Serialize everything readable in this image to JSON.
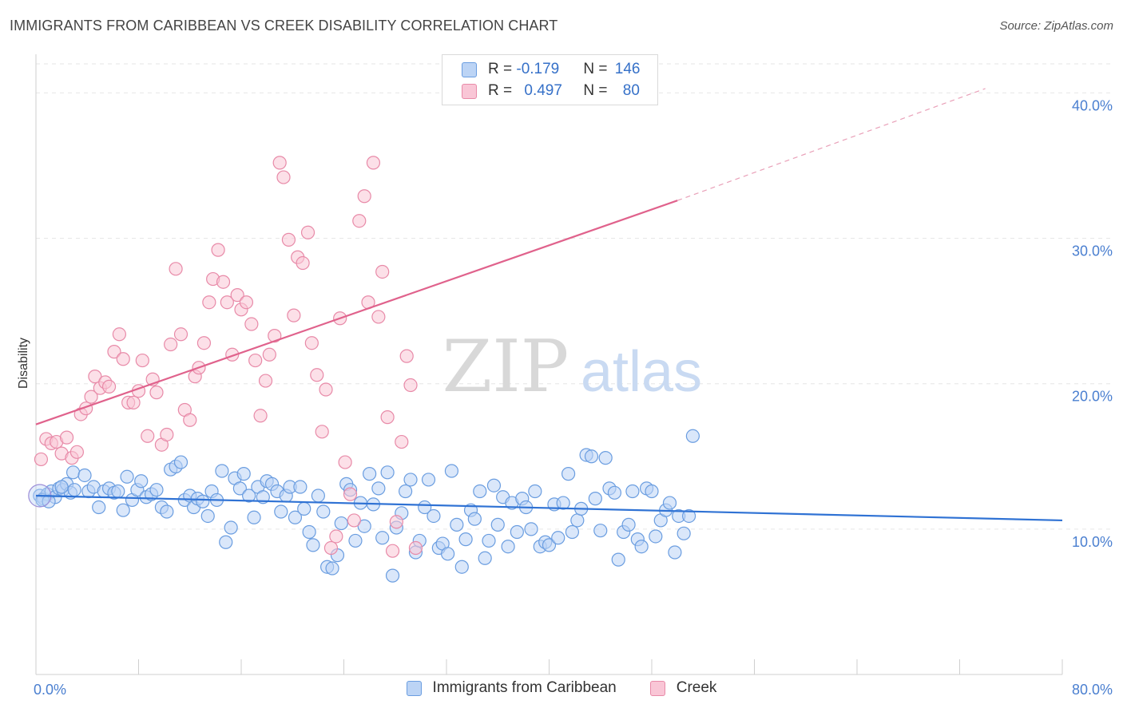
{
  "header": {
    "title": "IMMIGRANTS FROM CARIBBEAN VS CREEK DISABILITY CORRELATION CHART",
    "source": "Source: ZipAtlas.com"
  },
  "watermark": {
    "zip": "ZIP",
    "atlas": "atlas"
  },
  "legend": {
    "rows": [
      {
        "r_label": "R = ",
        "r_value": "-0.179",
        "n_label": "N = ",
        "n_value": "146"
      },
      {
        "r_label": "R = ",
        "r_value": "0.497",
        "n_label": "N = ",
        "n_value": "80"
      }
    ]
  },
  "chart_data": {
    "type": "scatter",
    "title": "IMMIGRANTS FROM CARIBBEAN VS CREEK DISABILITY CORRELATION CHART",
    "xlabel": "",
    "ylabel": "Disability",
    "xlim": [
      0,
      80
    ],
    "ylim": [
      0,
      42
    ],
    "x_tick_labels": [
      "0.0%",
      "80.0%"
    ],
    "y_ticks": [
      10,
      20,
      30,
      40
    ],
    "y_tick_labels": [
      "10.0%",
      "20.0%",
      "30.0%",
      "40.0%"
    ],
    "grid": true,
    "legend_position": "top-center",
    "series": [
      {
        "name": "Immigrants from Caribbean",
        "color": "#6a9de0",
        "fill": "#bcd4f5",
        "r": -0.179,
        "n": 146,
        "trend": {
          "x": [
            0,
            80
          ],
          "y": [
            12.3,
            10.6
          ]
        },
        "points": [
          [
            0.3,
            12.3
          ],
          [
            0.6,
            12.1
          ],
          [
            0.9,
            12.4
          ],
          [
            1.2,
            12.6
          ],
          [
            1.5,
            12.2
          ],
          [
            1.8,
            12.8
          ],
          [
            2.1,
            12.7
          ],
          [
            2.4,
            13.1
          ],
          [
            2.7,
            12.5
          ],
          [
            3.0,
            12.7
          ],
          [
            0.5,
            12.0
          ],
          [
            1.0,
            11.9
          ],
          [
            2.0,
            12.9
          ],
          [
            2.9,
            13.9
          ],
          [
            3.8,
            13.7
          ],
          [
            4.1,
            12.6
          ],
          [
            4.5,
            12.9
          ],
          [
            4.9,
            11.5
          ],
          [
            5.3,
            12.6
          ],
          [
            5.7,
            12.8
          ],
          [
            6.1,
            12.5
          ],
          [
            6.4,
            12.6
          ],
          [
            6.8,
            11.3
          ],
          [
            7.1,
            13.6
          ],
          [
            7.5,
            12.0
          ],
          [
            7.9,
            12.7
          ],
          [
            8.2,
            13.3
          ],
          [
            8.6,
            12.2
          ],
          [
            9.0,
            12.4
          ],
          [
            9.4,
            12.7
          ],
          [
            9.8,
            11.5
          ],
          [
            10.2,
            11.2
          ],
          [
            10.5,
            14.1
          ],
          [
            10.9,
            14.3
          ],
          [
            11.3,
            14.6
          ],
          [
            11.6,
            12.0
          ],
          [
            12.0,
            12.3
          ],
          [
            12.3,
            11.5
          ],
          [
            12.6,
            12.1
          ],
          [
            13.0,
            11.9
          ],
          [
            13.4,
            10.9
          ],
          [
            13.7,
            12.6
          ],
          [
            14.1,
            12.0
          ],
          [
            14.5,
            14.0
          ],
          [
            14.8,
            9.1
          ],
          [
            15.2,
            10.1
          ],
          [
            15.5,
            13.5
          ],
          [
            15.9,
            12.8
          ],
          [
            16.2,
            13.8
          ],
          [
            16.6,
            12.3
          ],
          [
            17.0,
            10.8
          ],
          [
            17.3,
            12.9
          ],
          [
            17.7,
            12.2
          ],
          [
            18.0,
            13.3
          ],
          [
            18.4,
            13.1
          ],
          [
            18.8,
            12.6
          ],
          [
            19.1,
            11.2
          ],
          [
            19.5,
            12.3
          ],
          [
            19.8,
            12.9
          ],
          [
            20.2,
            10.8
          ],
          [
            20.6,
            12.9
          ],
          [
            20.9,
            11.4
          ],
          [
            21.3,
            9.8
          ],
          [
            21.6,
            8.9
          ],
          [
            22.0,
            12.3
          ],
          [
            22.4,
            11.2
          ],
          [
            22.7,
            7.4
          ],
          [
            23.1,
            7.3
          ],
          [
            23.5,
            8.2
          ],
          [
            23.8,
            10.4
          ],
          [
            24.2,
            13.1
          ],
          [
            24.5,
            12.7
          ],
          [
            24.9,
            9.2
          ],
          [
            25.3,
            11.8
          ],
          [
            25.6,
            10.2
          ],
          [
            26.0,
            13.8
          ],
          [
            26.3,
            11.7
          ],
          [
            26.7,
            12.8
          ],
          [
            27.0,
            9.4
          ],
          [
            27.4,
            13.9
          ],
          [
            27.8,
            6.8
          ],
          [
            28.1,
            10.1
          ],
          [
            28.5,
            11.1
          ],
          [
            28.8,
            12.6
          ],
          [
            29.2,
            13.4
          ],
          [
            29.6,
            8.4
          ],
          [
            29.9,
            9.2
          ],
          [
            30.3,
            11.5
          ],
          [
            30.6,
            13.4
          ],
          [
            31.0,
            10.9
          ],
          [
            31.4,
            8.7
          ],
          [
            31.7,
            9.0
          ],
          [
            32.1,
            8.3
          ],
          [
            32.4,
            14.0
          ],
          [
            32.8,
            10.3
          ],
          [
            33.2,
            7.4
          ],
          [
            33.5,
            9.3
          ],
          [
            33.9,
            11.3
          ],
          [
            34.2,
            10.7
          ],
          [
            34.6,
            12.6
          ],
          [
            35.0,
            8.0
          ],
          [
            35.3,
            9.2
          ],
          [
            35.7,
            13.0
          ],
          [
            36.0,
            10.3
          ],
          [
            36.4,
            12.2
          ],
          [
            36.8,
            8.8
          ],
          [
            37.1,
            11.8
          ],
          [
            37.5,
            9.8
          ],
          [
            37.9,
            12.1
          ],
          [
            38.2,
            11.5
          ],
          [
            38.6,
            10.0
          ],
          [
            38.9,
            12.6
          ],
          [
            39.3,
            8.8
          ],
          [
            39.7,
            9.1
          ],
          [
            40.0,
            8.9
          ],
          [
            40.4,
            11.7
          ],
          [
            40.7,
            9.4
          ],
          [
            41.1,
            11.8
          ],
          [
            41.5,
            13.8
          ],
          [
            41.8,
            9.8
          ],
          [
            42.2,
            10.6
          ],
          [
            42.5,
            11.4
          ],
          [
            42.9,
            15.1
          ],
          [
            43.3,
            15.0
          ],
          [
            43.6,
            12.1
          ],
          [
            44.0,
            9.9
          ],
          [
            44.4,
            14.9
          ],
          [
            44.7,
            12.8
          ],
          [
            45.1,
            12.5
          ],
          [
            45.4,
            7.9
          ],
          [
            45.8,
            9.8
          ],
          [
            46.2,
            10.3
          ],
          [
            46.5,
            12.6
          ],
          [
            46.9,
            9.3
          ],
          [
            47.2,
            8.8
          ],
          [
            47.6,
            12.8
          ],
          [
            48.0,
            12.6
          ],
          [
            48.3,
            9.5
          ],
          [
            48.7,
            10.6
          ],
          [
            49.1,
            11.3
          ],
          [
            49.4,
            11.8
          ],
          [
            49.8,
            8.4
          ],
          [
            50.1,
            10.9
          ],
          [
            50.5,
            9.7
          ],
          [
            50.9,
            10.9
          ],
          [
            51.2,
            16.4
          ]
        ]
      },
      {
        "name": "Creek",
        "color": "#e88aa8",
        "fill": "#f9c6d6",
        "r": 0.497,
        "n": 80,
        "trend": {
          "x": [
            0,
            50
          ],
          "y": [
            17.2,
            32.6
          ],
          "dashed_to": [
            74,
            40.3
          ]
        },
        "points": [
          [
            0.4,
            14.8
          ],
          [
            0.8,
            16.2
          ],
          [
            1.2,
            15.9
          ],
          [
            1.6,
            16.0
          ],
          [
            2.0,
            15.2
          ],
          [
            2.4,
            16.3
          ],
          [
            2.8,
            14.9
          ],
          [
            3.2,
            15.3
          ],
          [
            3.5,
            17.9
          ],
          [
            3.9,
            18.3
          ],
          [
            4.3,
            19.1
          ],
          [
            4.6,
            20.5
          ],
          [
            5.0,
            19.7
          ],
          [
            5.4,
            20.1
          ],
          [
            5.7,
            19.8
          ],
          [
            6.1,
            22.2
          ],
          [
            6.5,
            23.4
          ],
          [
            6.8,
            21.7
          ],
          [
            7.2,
            18.7
          ],
          [
            7.6,
            18.7
          ],
          [
            8.0,
            19.5
          ],
          [
            8.3,
            21.6
          ],
          [
            8.7,
            16.4
          ],
          [
            9.1,
            20.3
          ],
          [
            9.4,
            19.4
          ],
          [
            9.8,
            15.8
          ],
          [
            10.2,
            16.5
          ],
          [
            10.5,
            22.7
          ],
          [
            10.9,
            27.9
          ],
          [
            11.3,
            23.4
          ],
          [
            11.6,
            18.2
          ],
          [
            12.0,
            17.5
          ],
          [
            12.4,
            20.5
          ],
          [
            12.7,
            21.1
          ],
          [
            13.1,
            22.8
          ],
          [
            13.5,
            25.6
          ],
          [
            13.8,
            27.2
          ],
          [
            14.2,
            29.2
          ],
          [
            14.6,
            27.0
          ],
          [
            14.9,
            25.6
          ],
          [
            15.3,
            22.0
          ],
          [
            15.7,
            26.1
          ],
          [
            16.0,
            25.1
          ],
          [
            16.4,
            25.6
          ],
          [
            16.8,
            24.1
          ],
          [
            17.1,
            21.6
          ],
          [
            17.5,
            17.8
          ],
          [
            17.9,
            20.2
          ],
          [
            18.2,
            22.0
          ],
          [
            18.6,
            23.3
          ],
          [
            19.0,
            35.2
          ],
          [
            19.3,
            34.2
          ],
          [
            19.7,
            29.9
          ],
          [
            20.1,
            24.7
          ],
          [
            20.4,
            28.7
          ],
          [
            20.8,
            28.3
          ],
          [
            21.2,
            30.4
          ],
          [
            21.5,
            22.8
          ],
          [
            21.9,
            20.6
          ],
          [
            22.3,
            16.7
          ],
          [
            22.6,
            19.6
          ],
          [
            23.0,
            8.7
          ],
          [
            23.4,
            9.5
          ],
          [
            23.7,
            24.5
          ],
          [
            24.1,
            14.6
          ],
          [
            24.5,
            12.4
          ],
          [
            24.8,
            10.6
          ],
          [
            25.2,
            31.2
          ],
          [
            25.6,
            32.9
          ],
          [
            25.9,
            25.6
          ],
          [
            26.3,
            35.2
          ],
          [
            26.7,
            24.6
          ],
          [
            27.0,
            27.7
          ],
          [
            27.4,
            17.7
          ],
          [
            27.8,
            8.5
          ],
          [
            28.1,
            10.5
          ],
          [
            28.5,
            16.0
          ],
          [
            28.9,
            21.9
          ],
          [
            29.2,
            19.9
          ],
          [
            29.6,
            8.7
          ]
        ]
      }
    ]
  }
}
